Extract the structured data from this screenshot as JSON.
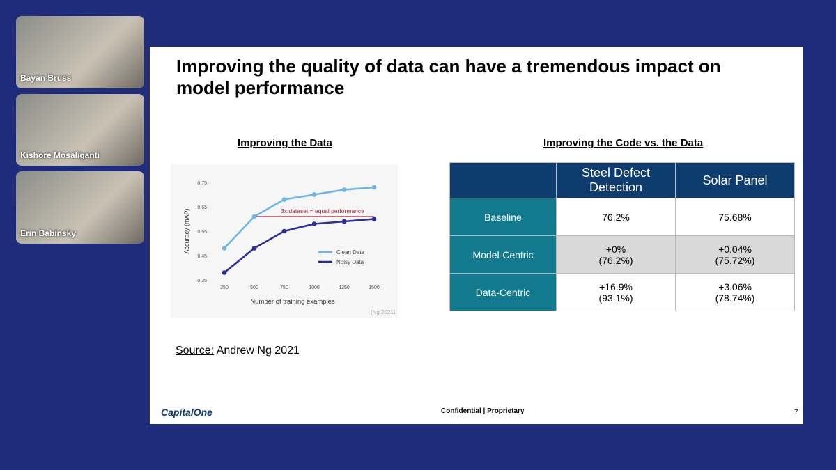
{
  "participants": [
    "Bayan Bruss",
    "Kishore Mosaliganti",
    "Erin Babinsky"
  ],
  "slide": {
    "title": "Improving the quality of data can have a tremendous impact on model performance",
    "left_heading": "Improving the Data",
    "right_heading": "Improving the Code vs. the Data",
    "table": {
      "columns": [
        "Steel Defect Detection",
        "Solar Panel"
      ],
      "rows": [
        {
          "label": "Baseline",
          "cells": [
            [
              "76.2%"
            ],
            [
              "75.68%"
            ]
          ]
        },
        {
          "label": "Model-Centric",
          "cells": [
            [
              "+0%",
              "(76.2%)"
            ],
            [
              "+0.04%",
              "(75.72%)"
            ]
          ]
        },
        {
          "label": "Data-Centric",
          "cells": [
            [
              "+16.9%",
              "(93.1%)"
            ],
            [
              "+3.06%",
              "(78.74%)"
            ]
          ]
        }
      ]
    },
    "source_label": "Source:",
    "source_text": "Andrew Ng 2021",
    "logo": "CapitalOne",
    "footer": "Confidential | Proprietary",
    "page_number": "7"
  },
  "chart_data": {
    "type": "line",
    "x_label": "Number of training examples",
    "y_label": "Accuracy (mAP)",
    "annotation": "3x dataset = equal performance",
    "citation": "[Ng 2021]",
    "x": [
      250,
      500,
      750,
      1000,
      1250,
      1500
    ],
    "series": [
      {
        "name": "Clean Data",
        "color": "#6cb6e6",
        "values": [
          0.48,
          0.61,
          0.68,
          0.7,
          0.72,
          0.73
        ]
      },
      {
        "name": "Noisy Data",
        "color": "#2b2f9c",
        "values": [
          0.38,
          0.48,
          0.55,
          0.58,
          0.59,
          0.6
        ]
      }
    ],
    "xlim": [
      250,
      1500
    ],
    "xticks": [
      250,
      500,
      750,
      1000,
      1250,
      1500
    ],
    "ylim": [
      0.35,
      0.75
    ],
    "yticks": [
      0.35,
      0.45,
      0.55,
      0.65,
      0.75
    ]
  }
}
